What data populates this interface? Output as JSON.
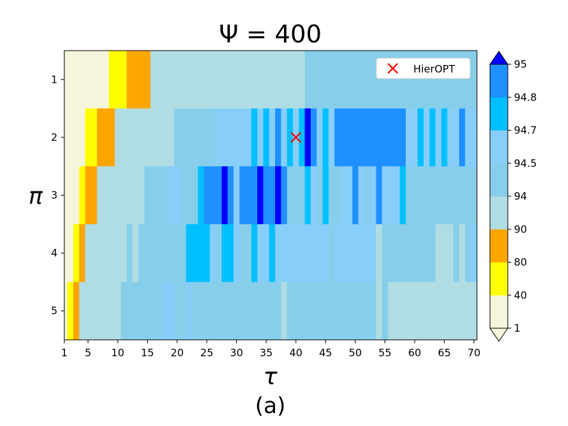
{
  "chart_data": {
    "type": "heatmap",
    "title": "Ψ = 400",
    "xlabel": "τ",
    "ylabel": "π",
    "caption": "(a)",
    "x_range": [
      1,
      70
    ],
    "x_ticks": [
      1,
      5,
      10,
      15,
      20,
      25,
      30,
      35,
      40,
      45,
      50,
      55,
      60,
      65,
      70
    ],
    "y_ticks": [
      1,
      2,
      3,
      4,
      5
    ],
    "legend": {
      "label": "HierOPT",
      "marker": "x",
      "color": "#ff0000",
      "position": "top-right"
    },
    "marker_point": {
      "x": 40,
      "y": 2
    },
    "colorbar": {
      "boundaries": [
        1,
        40,
        80,
        90,
        94,
        94.5,
        94.7,
        94.8,
        95
      ],
      "tick_labels": [
        "1",
        "40",
        "80",
        "90",
        "94",
        "94.5",
        "94.7",
        "94.8",
        "95"
      ],
      "colors": [
        "#f5f5dc",
        "#ffff00",
        "#ffa500",
        "#b0dde4",
        "#87ceeb",
        "#87cefa",
        "#00bfff",
        "#1e90ff"
      ],
      "under_color": "#f5f5dc",
      "over_color": "#0000ff"
    },
    "rows": [
      {
        "pi": 1,
        "segments": [
          {
            "x0": 1,
            "x1": 8.5,
            "value": 20
          },
          {
            "x0": 8.5,
            "x1": 11.5,
            "value": 60
          },
          {
            "x0": 11.5,
            "x1": 15.5,
            "value": 85
          },
          {
            "x0": 15.5,
            "x1": 41.5,
            "value": 92
          },
          {
            "x0": 41.5,
            "x1": 70.5,
            "value": 94.2
          }
        ]
      },
      {
        "pi": 2,
        "segments": [
          {
            "x0": 1,
            "x1": 4.5,
            "value": 20
          },
          {
            "x0": 4.5,
            "x1": 6.5,
            "value": 60
          },
          {
            "x0": 6.5,
            "x1": 9.5,
            "value": 85
          },
          {
            "x0": 9.5,
            "x1": 19.5,
            "value": 92
          },
          {
            "x0": 19.5,
            "x1": 26.5,
            "value": 94.2
          },
          {
            "x0": 26.5,
            "x1": 32.5,
            "value": 94.6
          },
          {
            "x0": 32.5,
            "x1": 33.5,
            "value": 94.75
          },
          {
            "x0": 33.5,
            "x1": 34.5,
            "value": 94.6
          },
          {
            "x0": 34.5,
            "x1": 35.5,
            "value": 94.75
          },
          {
            "x0": 35.5,
            "x1": 36.5,
            "value": 94.6
          },
          {
            "x0": 36.5,
            "x1": 37.5,
            "value": 94.9
          },
          {
            "x0": 37.5,
            "x1": 38.5,
            "value": 94.6
          },
          {
            "x0": 38.5,
            "x1": 39.5,
            "value": 94.75
          },
          {
            "x0": 39.5,
            "x1": 40.5,
            "value": 94.6
          },
          {
            "x0": 40.5,
            "x1": 41.5,
            "value": 94.75
          },
          {
            "x0": 41.5,
            "x1": 42.5,
            "value": 96
          },
          {
            "x0": 42.5,
            "x1": 43.5,
            "value": 94.9
          },
          {
            "x0": 43.5,
            "x1": 44.5,
            "value": 94.6
          },
          {
            "x0": 44.5,
            "x1": 45.5,
            "value": 94.75
          },
          {
            "x0": 45.5,
            "x1": 46.5,
            "value": 94.6
          },
          {
            "x0": 46.5,
            "x1": 58.5,
            "value": 94.9
          },
          {
            "x0": 58.5,
            "x1": 60.5,
            "value": 94.6
          },
          {
            "x0": 60.5,
            "x1": 61.5,
            "value": 94.75
          },
          {
            "x0": 61.5,
            "x1": 62.5,
            "value": 94.6
          },
          {
            "x0": 62.5,
            "x1": 63.5,
            "value": 94.75
          },
          {
            "x0": 63.5,
            "x1": 64.5,
            "value": 94.6
          },
          {
            "x0": 64.5,
            "x1": 65.5,
            "value": 94.75
          },
          {
            "x0": 65.5,
            "x1": 67.5,
            "value": 94.6
          },
          {
            "x0": 67.5,
            "x1": 68.5,
            "value": 94.9
          },
          {
            "x0": 68.5,
            "x1": 70.5,
            "value": 94.6
          }
        ]
      },
      {
        "pi": 3,
        "segments": [
          {
            "x0": 1,
            "x1": 3.5,
            "value": 20
          },
          {
            "x0": 3.5,
            "x1": 4.5,
            "value": 60
          },
          {
            "x0": 4.5,
            "x1": 6.5,
            "value": 85
          },
          {
            "x0": 6.5,
            "x1": 14.5,
            "value": 92
          },
          {
            "x0": 14.5,
            "x1": 18.5,
            "value": 94.2
          },
          {
            "x0": 18.5,
            "x1": 20.5,
            "value": 94.6
          },
          {
            "x0": 20.5,
            "x1": 23.5,
            "value": 94.2
          },
          {
            "x0": 23.5,
            "x1": 24.5,
            "value": 94.75
          },
          {
            "x0": 24.5,
            "x1": 27.5,
            "value": 94.9
          },
          {
            "x0": 27.5,
            "x1": 28.5,
            "value": 96
          },
          {
            "x0": 28.5,
            "x1": 29.5,
            "value": 94.9
          },
          {
            "x0": 29.5,
            "x1": 30.5,
            "value": 94.6
          },
          {
            "x0": 30.5,
            "x1": 33.5,
            "value": 94.9
          },
          {
            "x0": 33.5,
            "x1": 34.5,
            "value": 96
          },
          {
            "x0": 34.5,
            "x1": 36.5,
            "value": 94.9
          },
          {
            "x0": 36.5,
            "x1": 37.5,
            "value": 96
          },
          {
            "x0": 37.5,
            "x1": 38.5,
            "value": 94.9
          },
          {
            "x0": 38.5,
            "x1": 41.5,
            "value": 94.2
          },
          {
            "x0": 41.5,
            "x1": 42.5,
            "value": 94.75
          },
          {
            "x0": 42.5,
            "x1": 43.5,
            "value": 94.6
          },
          {
            "x0": 43.5,
            "x1": 44.5,
            "value": 94.2
          },
          {
            "x0": 44.5,
            "x1": 45.5,
            "value": 94.75
          },
          {
            "x0": 45.5,
            "x1": 47.5,
            "value": 94.2
          },
          {
            "x0": 47.5,
            "x1": 49.5,
            "value": 94.6
          },
          {
            "x0": 49.5,
            "x1": 50.5,
            "value": 94.9
          },
          {
            "x0": 50.5,
            "x1": 51.5,
            "value": 94.6
          },
          {
            "x0": 51.5,
            "x1": 52.5,
            "value": 94.2
          },
          {
            "x0": 52.5,
            "x1": 53.5,
            "value": 94.6
          },
          {
            "x0": 53.5,
            "x1": 54.5,
            "value": 94.9
          },
          {
            "x0": 54.5,
            "x1": 57.5,
            "value": 94.6
          },
          {
            "x0": 57.5,
            "x1": 58.5,
            "value": 94.75
          },
          {
            "x0": 58.5,
            "x1": 70.5,
            "value": 94.2
          }
        ]
      },
      {
        "pi": 4,
        "segments": [
          {
            "x0": 1,
            "x1": 2.5,
            "value": 20
          },
          {
            "x0": 2.5,
            "x1": 3.5,
            "value": 60
          },
          {
            "x0": 3.5,
            "x1": 4.5,
            "value": 85
          },
          {
            "x0": 4.5,
            "x1": 11.5,
            "value": 92
          },
          {
            "x0": 11.5,
            "x1": 12.5,
            "value": 94.2
          },
          {
            "x0": 12.5,
            "x1": 13.5,
            "value": 92
          },
          {
            "x0": 13.5,
            "x1": 21.5,
            "value": 94.2
          },
          {
            "x0": 21.5,
            "x1": 25.5,
            "value": 94.75
          },
          {
            "x0": 25.5,
            "x1": 26.5,
            "value": 94.6
          },
          {
            "x0": 26.5,
            "x1": 27.5,
            "value": 94.2
          },
          {
            "x0": 27.5,
            "x1": 29.5,
            "value": 94.75
          },
          {
            "x0": 29.5,
            "x1": 30.5,
            "value": 94.6
          },
          {
            "x0": 30.5,
            "x1": 32.5,
            "value": 94.2
          },
          {
            "x0": 32.5,
            "x1": 33.5,
            "value": 94.75
          },
          {
            "x0": 33.5,
            "x1": 35.5,
            "value": 94.6
          },
          {
            "x0": 35.5,
            "x1": 36.5,
            "value": 94.75
          },
          {
            "x0": 36.5,
            "x1": 45.5,
            "value": 94.6
          },
          {
            "x0": 45.5,
            "x1": 46.5,
            "value": 94.2
          },
          {
            "x0": 46.5,
            "x1": 53.5,
            "value": 94.6
          },
          {
            "x0": 53.5,
            "x1": 54.5,
            "value": 92
          },
          {
            "x0": 54.5,
            "x1": 63.5,
            "value": 94.2
          },
          {
            "x0": 63.5,
            "x1": 66.5,
            "value": 92
          },
          {
            "x0": 66.5,
            "x1": 67.5,
            "value": 94.2
          },
          {
            "x0": 67.5,
            "x1": 68.5,
            "value": 92
          },
          {
            "x0": 68.5,
            "x1": 69.5,
            "value": 94.2
          },
          {
            "x0": 69.5,
            "x1": 70.5,
            "value": 94.6
          }
        ]
      },
      {
        "pi": 5,
        "segments": [
          {
            "x0": 1,
            "x1": 1.5,
            "value": 20
          },
          {
            "x0": 1.5,
            "x1": 2.5,
            "value": 60
          },
          {
            "x0": 2.5,
            "x1": 3.5,
            "value": 85
          },
          {
            "x0": 3.5,
            "x1": 10.5,
            "value": 92
          },
          {
            "x0": 10.5,
            "x1": 17.5,
            "value": 94.2
          },
          {
            "x0": 17.5,
            "x1": 19.5,
            "value": 94.6
          },
          {
            "x0": 19.5,
            "x1": 21.5,
            "value": 94.2
          },
          {
            "x0": 21.5,
            "x1": 22.5,
            "value": 94.6
          },
          {
            "x0": 22.5,
            "x1": 37.5,
            "value": 94.2
          },
          {
            "x0": 37.5,
            "x1": 38.5,
            "value": 92
          },
          {
            "x0": 38.5,
            "x1": 53.5,
            "value": 94.2
          },
          {
            "x0": 53.5,
            "x1": 54.5,
            "value": 92
          },
          {
            "x0": 54.5,
            "x1": 55.5,
            "value": 94.2
          },
          {
            "x0": 55.5,
            "x1": 70.5,
            "value": 92
          }
        ]
      }
    ]
  }
}
